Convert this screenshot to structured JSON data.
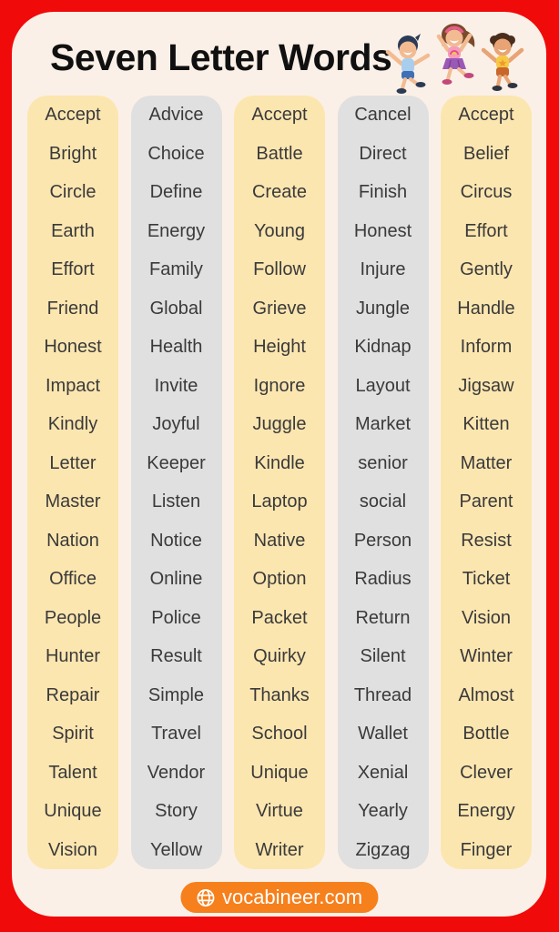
{
  "header": {
    "title": "Seven Letter Words",
    "illustration": "three-jumping-kids"
  },
  "columns": [
    {
      "theme": "yellow",
      "words": [
        "Accept",
        "Bright",
        "Circle",
        "Earth",
        "Effort",
        "Friend",
        "Honest",
        "Impact",
        "Kindly",
        "Letter",
        "Master",
        "Nation",
        "Office",
        "People",
        "Hunter",
        "Repair",
        "Spirit",
        "Talent",
        "Unique",
        "Vision"
      ]
    },
    {
      "theme": "gray",
      "words": [
        "Advice",
        "Choice",
        "Define",
        "Energy",
        "Family",
        "Global",
        "Health",
        "Invite",
        "Joyful",
        "Keeper",
        "Listen",
        "Notice",
        "Online",
        "Police",
        "Result",
        "Simple",
        "Travel",
        "Vendor",
        "Story",
        "Yellow"
      ]
    },
    {
      "theme": "yellow",
      "words": [
        "Accept",
        "Battle",
        "Create",
        "Young",
        "Follow",
        "Grieve",
        "Height",
        "Ignore",
        "Juggle",
        "Kindle",
        "Laptop",
        "Native",
        "Option",
        "Packet",
        "Quirky",
        "Thanks",
        "School",
        "Unique",
        "Virtue",
        "Writer"
      ]
    },
    {
      "theme": "gray",
      "words": [
        "Cancel",
        "Direct",
        "Finish",
        "Honest",
        "Injure",
        "Jungle",
        "Kidnap",
        "Layout",
        "Market",
        "senior",
        "social",
        "Person",
        "Radius",
        "Return",
        "Silent",
        "Thread",
        "Wallet",
        "Xenial",
        "Yearly",
        "Zigzag"
      ]
    },
    {
      "theme": "yellow",
      "words": [
        "Accept",
        "Belief",
        "Circus",
        "Effort",
        "Gently",
        "Handle",
        "Inform",
        "Jigsaw",
        "Kitten",
        "Matter",
        "Parent",
        "Resist",
        "Ticket",
        "Vision",
        "Winter",
        "Almost",
        "Bottle",
        "Clever",
        "Energy",
        "Finger"
      ]
    }
  ],
  "footer": {
    "site": "vocabineer.com",
    "icon": "globe-icon"
  },
  "colors": {
    "border_red": "#f10a0a",
    "panel_cream": "#fbf0e7",
    "column_yellow": "#fce6b0",
    "column_gray": "#e0e0e0",
    "footer_orange": "#f6801c",
    "word_text": "#3a3a3a",
    "title_text": "#101010",
    "footer_text": "#ffffff"
  }
}
